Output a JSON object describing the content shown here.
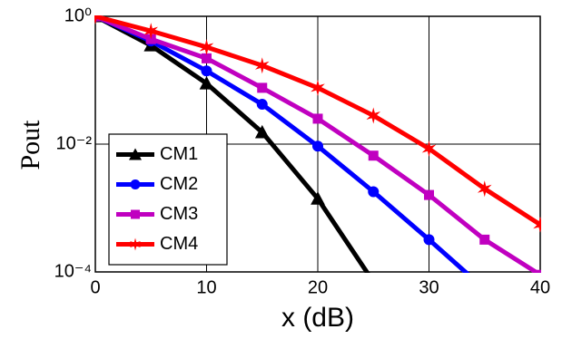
{
  "chart_data": {
    "type": "line",
    "xlabel": "x (dB)",
    "ylabel": "Pout",
    "x": [
      0,
      5,
      10,
      15,
      20,
      25,
      30,
      35,
      40
    ],
    "series": [
      {
        "name": "CM1",
        "color": "#000000",
        "marker": "triangle",
        "values": [
          1,
          0.35,
          0.089,
          0.0153,
          0.0014,
          7e-05,
          null,
          null,
          null
        ]
      },
      {
        "name": "CM2",
        "color": "#0000ff",
        "marker": "circle",
        "values": [
          1,
          0.41,
          0.14,
          0.042,
          0.0093,
          0.0018,
          0.00032,
          5.4e-05,
          null
        ]
      },
      {
        "name": "CM3",
        "color": "#c000c0",
        "marker": "square",
        "values": [
          1,
          0.44,
          0.22,
          0.076,
          0.025,
          0.0066,
          0.0016,
          0.00032,
          9e-05
        ]
      },
      {
        "name": "CM4",
        "color": "#ff0000",
        "marker": "star",
        "values": [
          1,
          0.59,
          0.33,
          0.17,
          0.076,
          0.028,
          0.0085,
          0.002,
          0.00055
        ]
      }
    ],
    "xlim": [
      0,
      40
    ],
    "xticks": [
      0,
      10,
      20,
      30,
      40
    ],
    "ylim": [
      0.0001,
      1
    ],
    "ylog": true,
    "yticks": [
      {
        "value": 1,
        "label": "10⁰"
      },
      {
        "value": 0.01,
        "label": "10⁻²"
      },
      {
        "value": 0.0001,
        "label": "10⁻⁴"
      }
    ],
    "grid": true,
    "legend": "lower left"
  }
}
